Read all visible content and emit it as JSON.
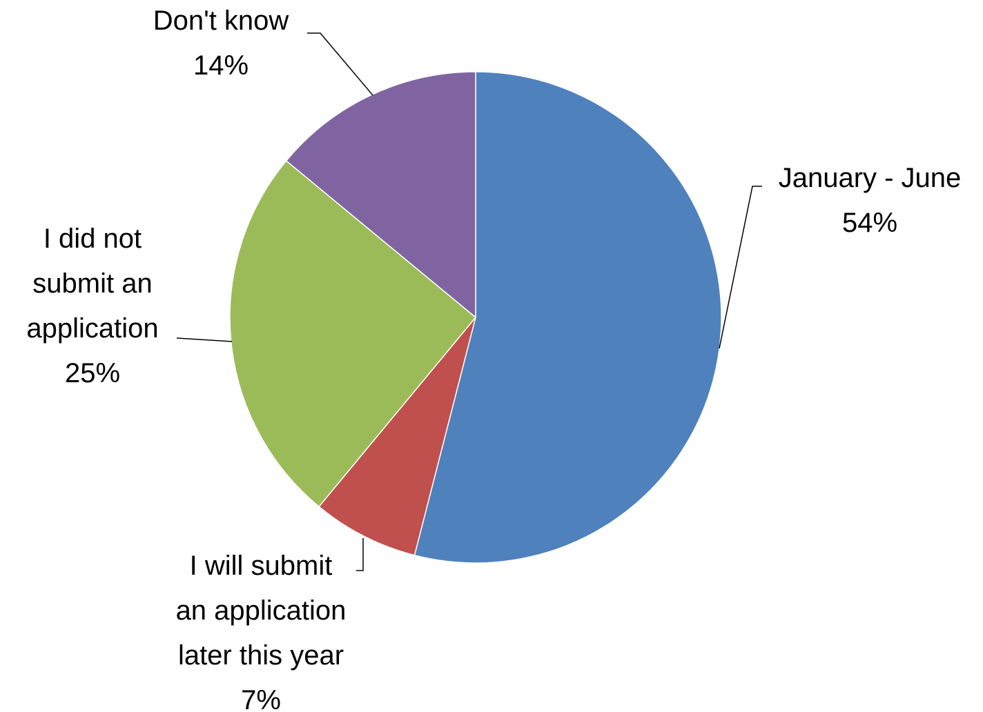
{
  "chart_data": {
    "type": "pie",
    "slices": [
      {
        "label": "January - June",
        "label_lines": [
          "January - June"
        ],
        "value": 54,
        "value_label": "54%",
        "color": "#4F81BD"
      },
      {
        "label": "I will submit an application later this year",
        "label_lines": [
          "I will submit",
          "an application",
          "later this year"
        ],
        "value": 7,
        "value_label": "7%",
        "color": "#C0504D"
      },
      {
        "label": "I did not submit an application",
        "label_lines": [
          "I did not",
          "submit an",
          "application"
        ],
        "value": 25,
        "value_label": "25%",
        "color": "#9BBB59"
      },
      {
        "label": "Don't know",
        "label_lines": [
          "Don't know"
        ],
        "value": 14,
        "value_label": "14%",
        "color": "#8064A2"
      }
    ]
  }
}
